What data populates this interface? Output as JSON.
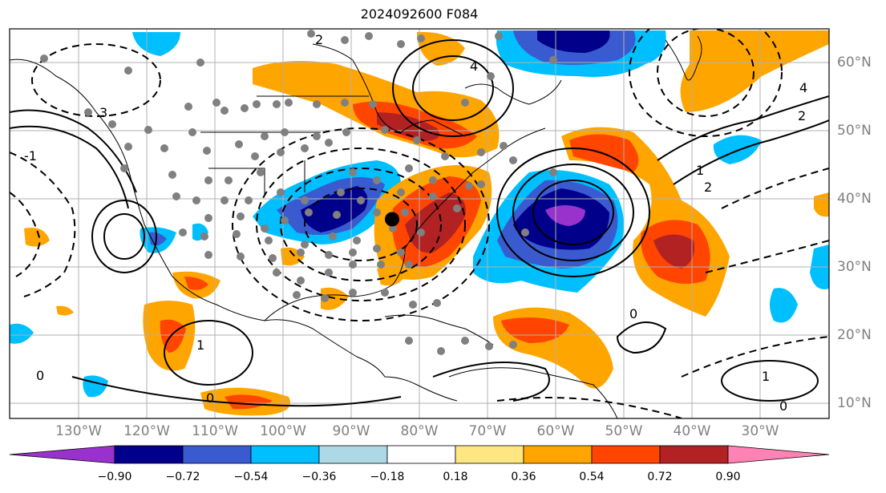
{
  "title": "2024092600 F084",
  "map": {
    "lon_labels": [
      "130°W",
      "120°W",
      "110°W",
      "100°W",
      "90°W",
      "80°W",
      "70°W",
      "60°W",
      "50°W",
      "40°W",
      "30°W"
    ],
    "lat_labels": [
      "60°N",
      "50°N",
      "40°N",
      "30°N",
      "20°N",
      "10°N"
    ],
    "contour_labels": [
      "0",
      "2",
      "3",
      "4",
      "-1",
      "1",
      "0",
      "2",
      "1",
      "4",
      "0",
      "1",
      "0",
      "2"
    ],
    "marker": {
      "lon": -84,
      "lat": 37,
      "color": "#000000"
    }
  },
  "colorbar": {
    "ticks": [
      "−0.90",
      "−0.72",
      "−0.54",
      "−0.36",
      "−0.18",
      "0.18",
      "0.36",
      "0.54",
      "0.72",
      "0.90"
    ],
    "colors": [
      "#9932cc",
      "#00008b",
      "#3a5bcf",
      "#00bfff",
      "#add8e6",
      "#ffffff",
      "#ffe680",
      "#ffa500",
      "#ff4500",
      "#b22222",
      "#ff82b4"
    ]
  },
  "palette": {
    "positive_light": "#ffa500",
    "positive_mid": "#ff4500",
    "positive_dark": "#b22222",
    "negative_light": "#00bfff",
    "negative_mid": "#3a5bcf",
    "negative_dark": "#00008b",
    "negative_extreme": "#9932cc",
    "station_dots": "#808080"
  }
}
